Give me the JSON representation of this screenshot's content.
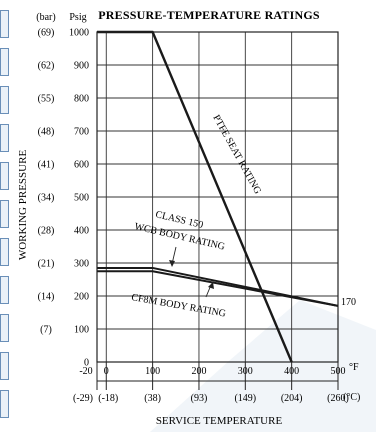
{
  "chart_data": {
    "type": "line",
    "title": "PRESSURE-TEMPERATURE RATINGS",
    "xlabel": "SERVICE TEMPERATURE",
    "ylabel": "WORKING PRESSURE",
    "x_unit_primary": "°F",
    "x_unit_secondary": "(°C)",
    "y_unit_primary": "Psig",
    "y_unit_secondary": "(bar)",
    "xlim": [
      -20,
      500
    ],
    "ylim": [
      0,
      1000
    ],
    "x_ticks_f": [
      -20,
      0,
      100,
      200,
      300,
      400,
      500
    ],
    "x_ticks_c": [
      "(-29)",
      "(-18)",
      "(38)",
      "(93)",
      "(149)",
      "(204)",
      "(260)"
    ],
    "y_ticks_psig": [
      0,
      100,
      200,
      300,
      400,
      500,
      600,
      700,
      800,
      900,
      1000
    ],
    "y_ticks_bar": [
      "",
      "(7)",
      "(14)",
      "(21)",
      "(28)",
      "(34)",
      "(41)",
      "(48)",
      "(55)",
      "(62)",
      "(69)"
    ],
    "grid": true,
    "series": [
      {
        "name": "PTFE SEAT RATING",
        "x": [
          -20,
          100,
          400
        ],
        "y": [
          1000,
          1000,
          0
        ]
      },
      {
        "name": "CLASS 150 WCB BODY RATING",
        "x": [
          -20,
          100,
          500
        ],
        "y": [
          285,
          285,
          170
        ]
      },
      {
        "name": "CF8M BODY RATING",
        "x": [
          -20,
          100,
          500
        ],
        "y": [
          275,
          275,
          170
        ]
      }
    ],
    "annotations": [
      {
        "text": "PTFE SEAT RATING"
      },
      {
        "text": "CLASS 150"
      },
      {
        "text": "WCB BODY RATING"
      },
      {
        "text": "CF8M BODY RATING"
      },
      {
        "text": "170"
      }
    ]
  }
}
